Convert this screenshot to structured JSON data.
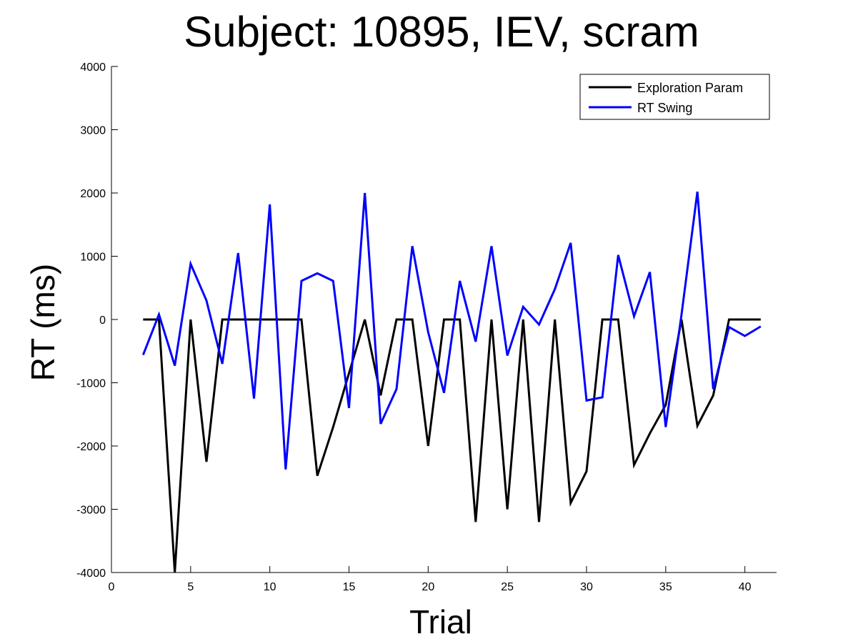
{
  "chart_data": {
    "type": "line",
    "title": "Subject: 10895, IEV, scram",
    "xlabel": "Trial",
    "ylabel": "RT (ms)",
    "xlim": [
      0,
      42
    ],
    "ylim": [
      -4000,
      4000
    ],
    "xticks": [
      0,
      5,
      10,
      15,
      20,
      25,
      30,
      35,
      40
    ],
    "yticks": [
      -4000,
      -3000,
      -2000,
      -1000,
      0,
      1000,
      2000,
      3000,
      4000
    ],
    "grid": false,
    "legend_position": "top-right",
    "series": [
      {
        "name": "Exploration Param",
        "color": "#000000",
        "x": [
          2,
          3,
          4,
          5,
          6,
          7,
          8,
          9,
          10,
          11,
          12,
          13,
          14,
          15,
          16,
          17,
          18,
          19,
          20,
          21,
          22,
          23,
          24,
          25,
          26,
          27,
          28,
          29,
          30,
          31,
          32,
          33,
          34,
          35,
          36,
          37,
          38,
          39,
          40,
          41
        ],
        "values": [
          0,
          0,
          -4000,
          0,
          -2250,
          0,
          0,
          0,
          0,
          0,
          0,
          -2470,
          -1700,
          -850,
          0,
          -1200,
          0,
          0,
          -2000,
          0,
          0,
          -3200,
          0,
          -3000,
          0,
          -3200,
          0,
          -2900,
          -2400,
          0,
          0,
          -2300,
          -1800,
          -1350,
          0,
          -1680,
          -1200,
          0,
          0,
          0
        ]
      },
      {
        "name": "RT Swing",
        "color": "#0000ff",
        "x": [
          2,
          3,
          4,
          5,
          6,
          7,
          8,
          9,
          10,
          11,
          12,
          13,
          14,
          15,
          16,
          17,
          18,
          19,
          20,
          21,
          22,
          23,
          24,
          25,
          26,
          27,
          28,
          29,
          30,
          31,
          32,
          33,
          34,
          35,
          36,
          37,
          38,
          39,
          40,
          41
        ],
        "values": [
          -560,
          80,
          -730,
          880,
          300,
          -700,
          1050,
          -1250,
          1820,
          -2370,
          610,
          730,
          610,
          -1400,
          2000,
          -1650,
          -1100,
          1160,
          -200,
          -1160,
          610,
          -350,
          1160,
          -570,
          200,
          -80,
          480,
          1210,
          -1280,
          -1230,
          1020,
          50,
          750,
          -1700,
          80,
          2020,
          -1100,
          -120,
          -260,
          -110
        ]
      }
    ]
  }
}
